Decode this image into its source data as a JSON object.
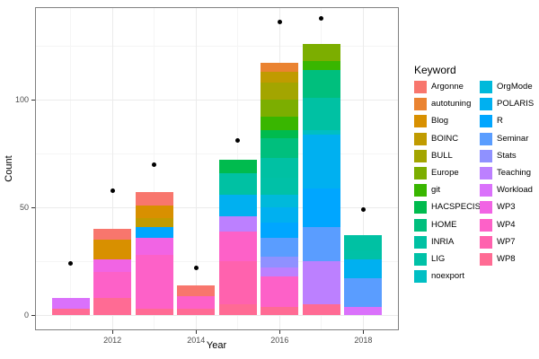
{
  "chart_data": {
    "type": "bar",
    "stacked": true,
    "title": "",
    "xlabel": "Year",
    "ylabel": "Count",
    "legend_title": "Keyword",
    "legend_position": "right",
    "grid": true,
    "xlim": [
      2010.15,
      2018.85
    ],
    "ylim": [
      -7,
      143
    ],
    "x_ticks": [
      2012,
      2014,
      2016,
      2018
    ],
    "x_tick_labels": [
      "2012",
      "2014",
      "2016",
      "2018"
    ],
    "x_minor": [
      2011,
      2013,
      2015,
      2017
    ],
    "y_ticks": [
      0,
      50,
      100
    ],
    "y_tick_labels": [
      "0",
      "50",
      "100"
    ],
    "y_minor": [
      25,
      75,
      125
    ],
    "bar_width_years": 0.9,
    "keywords": [
      {
        "name": "Argonne",
        "color": "#F8766D"
      },
      {
        "name": "autotuning",
        "color": "#EA8331"
      },
      {
        "name": "Blog",
        "color": "#D89000"
      },
      {
        "name": "BOINC",
        "color": "#C09B00"
      },
      {
        "name": "BULL",
        "color": "#A3A500"
      },
      {
        "name": "Europe",
        "color": "#7CAE00"
      },
      {
        "name": "git",
        "color": "#39B600"
      },
      {
        "name": "HACSPECIS",
        "color": "#00BB4E"
      },
      {
        "name": "HOME",
        "color": "#00BF7D"
      },
      {
        "name": "INRIA",
        "color": "#00C1A3"
      },
      {
        "name": "LIG",
        "color": "#00C1A7"
      },
      {
        "name": "noexport",
        "color": "#00BFC4"
      },
      {
        "name": "OrgMode",
        "color": "#00B9DB"
      },
      {
        "name": "POLARIS",
        "color": "#00B0F0"
      },
      {
        "name": "R",
        "color": "#00A6FF"
      },
      {
        "name": "Seminar",
        "color": "#5A9DFF"
      },
      {
        "name": "Stats",
        "color": "#8F91FF"
      },
      {
        "name": "Teaching",
        "color": "#BC80FF"
      },
      {
        "name": "Workload",
        "color": "#DA71FB"
      },
      {
        "name": "WP3",
        "color": "#F164E4"
      },
      {
        "name": "WP4",
        "color": "#FD61C8"
      },
      {
        "name": "WP7",
        "color": "#FF62AE"
      },
      {
        "name": "WP8",
        "color": "#FF6B94"
      }
    ],
    "bars": [
      {
        "year": 2011,
        "segments": [
          [
            "Workload",
            5
          ],
          [
            "WP8",
            3
          ]
        ]
      },
      {
        "year": 2012,
        "segments": [
          [
            "Argonne",
            5
          ],
          [
            "Blog",
            9
          ],
          [
            "WP3",
            6
          ],
          [
            "WP4",
            12
          ],
          [
            "WP8",
            8
          ]
        ]
      },
      {
        "year": 2013,
        "segments": [
          [
            "Argonne",
            6
          ],
          [
            "Blog",
            6
          ],
          [
            "BOINC",
            4
          ],
          [
            "R",
            5
          ],
          [
            "WP3",
            8
          ],
          [
            "WP4",
            25
          ],
          [
            "WP8",
            3
          ]
        ]
      },
      {
        "year": 2014,
        "segments": [
          [
            "Argonne",
            5
          ],
          [
            "WP4",
            6
          ],
          [
            "WP8",
            3
          ]
        ]
      },
      {
        "year": 2015,
        "segments": [
          [
            "HACSPECIS",
            6
          ],
          [
            "INRIA",
            10
          ],
          [
            "POLARIS",
            10
          ],
          [
            "Teaching",
            7
          ],
          [
            "WP4",
            14
          ],
          [
            "WP7",
            20
          ],
          [
            "WP8",
            5
          ]
        ]
      },
      {
        "year": 2016,
        "segments": [
          [
            "autotuning",
            4
          ],
          [
            "BOINC",
            5
          ],
          [
            "BULL",
            8
          ],
          [
            "Europe",
            8
          ],
          [
            "git",
            6
          ],
          [
            "HACSPECIS",
            4
          ],
          [
            "HOME",
            9
          ],
          [
            "INRIA",
            9
          ],
          [
            "LIG",
            8
          ],
          [
            "OrgMode",
            6
          ],
          [
            "POLARIS",
            7
          ],
          [
            "R",
            7
          ],
          [
            "Seminar",
            9
          ],
          [
            "Stats",
            5
          ],
          [
            "Teaching",
            4
          ],
          [
            "WP4",
            14
          ],
          [
            "WP8",
            4
          ]
        ]
      },
      {
        "year": 2017,
        "segments": [
          [
            "Europe",
            8
          ],
          [
            "git",
            4
          ],
          [
            "HOME",
            13
          ],
          [
            "INRIA",
            15
          ],
          [
            "noexport",
            2
          ],
          [
            "POLARIS",
            25
          ],
          [
            "R",
            18
          ],
          [
            "Seminar",
            16
          ],
          [
            "Teaching",
            20
          ],
          [
            "WP8",
            5
          ]
        ]
      },
      {
        "year": 2018,
        "segments": [
          [
            "INRIA",
            7
          ],
          [
            "LIG",
            4
          ],
          [
            "POLARIS",
            9
          ],
          [
            "Seminar",
            13
          ],
          [
            "Workload",
            4
          ]
        ]
      }
    ],
    "points": [
      {
        "year": 2011,
        "value": 24
      },
      {
        "year": 2012,
        "value": 58
      },
      {
        "year": 2013,
        "value": 70
      },
      {
        "year": 2014,
        "value": 22
      },
      {
        "year": 2015,
        "value": 81
      },
      {
        "year": 2016,
        "value": 136
      },
      {
        "year": 2017,
        "value": 138
      },
      {
        "year": 2018,
        "value": 49
      }
    ],
    "point_color": "#000000",
    "colors": {
      "panel_border": "#808080",
      "grid_major": "#EBEBEB",
      "grid_minor": "#F5F5F5",
      "tick": "#333333",
      "tick_label": "#4d4d4d",
      "background": "#FFFFFF"
    }
  }
}
